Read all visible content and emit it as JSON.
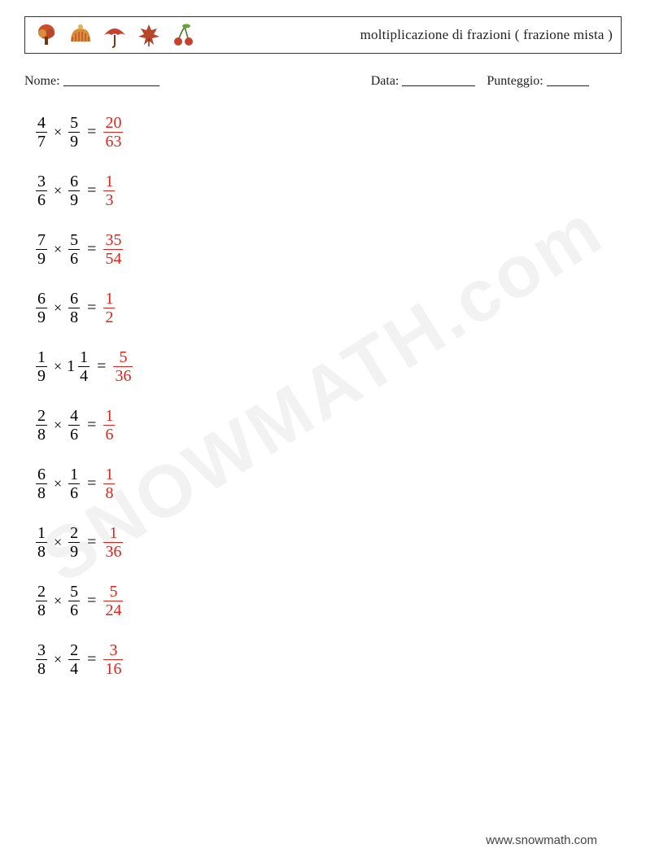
{
  "header": {
    "title": "moltiplicazione di frazioni ( frazione mista )",
    "icons": [
      {
        "name": "tree-icon",
        "fill": "#c94f28",
        "accent": "#6b3a1a"
      },
      {
        "name": "hat-icon",
        "fill": "#d98e3a",
        "accent": "#b8462a"
      },
      {
        "name": "umbrella-icon",
        "fill": "#c7412e",
        "accent": "#6b3a1a"
      },
      {
        "name": "leaf-icon",
        "fill": "#b8462a",
        "accent": "#7a2d1a"
      },
      {
        "name": "cherry-icon",
        "fill": "#c7412e",
        "accent": "#4a7a2a"
      }
    ]
  },
  "info": {
    "name_label": "Nome:",
    "date_label": "Data:",
    "score_label": "Punteggio:",
    "name_blank_width": 118,
    "date_blank_width": 90,
    "score_blank_width": 52
  },
  "style": {
    "text_color": "#000000",
    "answer_color": "#e2231a",
    "font_size_problem": 20,
    "font_size_title": 17,
    "font_size_info": 16
  },
  "problems": [
    {
      "a": {
        "n": "4",
        "d": "7"
      },
      "b": {
        "n": "5",
        "d": "9"
      },
      "ans": {
        "n": "20",
        "d": "63"
      }
    },
    {
      "a": {
        "n": "3",
        "d": "6"
      },
      "b": {
        "n": "6",
        "d": "9"
      },
      "ans": {
        "n": "1",
        "d": "3"
      }
    },
    {
      "a": {
        "n": "7",
        "d": "9"
      },
      "b": {
        "n": "5",
        "d": "6"
      },
      "ans": {
        "n": "35",
        "d": "54"
      }
    },
    {
      "a": {
        "n": "6",
        "d": "9"
      },
      "b": {
        "n": "6",
        "d": "8"
      },
      "ans": {
        "n": "1",
        "d": "2"
      }
    },
    {
      "a": {
        "n": "1",
        "d": "9"
      },
      "b": {
        "w": "1",
        "n": "1",
        "d": "4"
      },
      "ans": {
        "n": "5",
        "d": "36"
      }
    },
    {
      "a": {
        "n": "2",
        "d": "8"
      },
      "b": {
        "n": "4",
        "d": "6"
      },
      "ans": {
        "n": "1",
        "d": "6"
      }
    },
    {
      "a": {
        "n": "6",
        "d": "8"
      },
      "b": {
        "n": "1",
        "d": "6"
      },
      "ans": {
        "n": "1",
        "d": "8"
      }
    },
    {
      "a": {
        "n": "1",
        "d": "8"
      },
      "b": {
        "n": "2",
        "d": "9"
      },
      "ans": {
        "n": "1",
        "d": "36"
      }
    },
    {
      "a": {
        "n": "2",
        "d": "8"
      },
      "b": {
        "n": "5",
        "d": "6"
      },
      "ans": {
        "n": "5",
        "d": "24"
      }
    },
    {
      "a": {
        "n": "3",
        "d": "8"
      },
      "b": {
        "n": "2",
        "d": "4"
      },
      "ans": {
        "n": "3",
        "d": "16"
      }
    }
  ],
  "symbols": {
    "times": "×",
    "equals": "="
  },
  "watermark": "SNOWMATH.com",
  "footer": "www.snowmath.com"
}
